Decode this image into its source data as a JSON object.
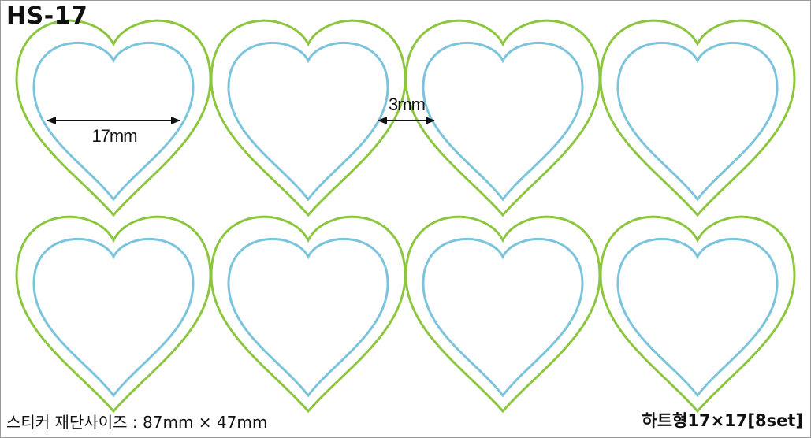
{
  "title": "HS-17",
  "footer": {
    "cut_size": "스티커 재단사이즈 : 87mm × 47mm",
    "spec": "하트형17×17[8set]"
  },
  "dimensions": {
    "heart_width": "17mm",
    "gap": "3mm"
  },
  "layout": {
    "rows": 2,
    "columns": 4,
    "heart_count": 8
  },
  "colors": {
    "outer_outline": "#8cc63f",
    "inner_outline": "#7cc4dc",
    "dimension_line": "#111111",
    "frame_border": "#9a9a9a"
  }
}
